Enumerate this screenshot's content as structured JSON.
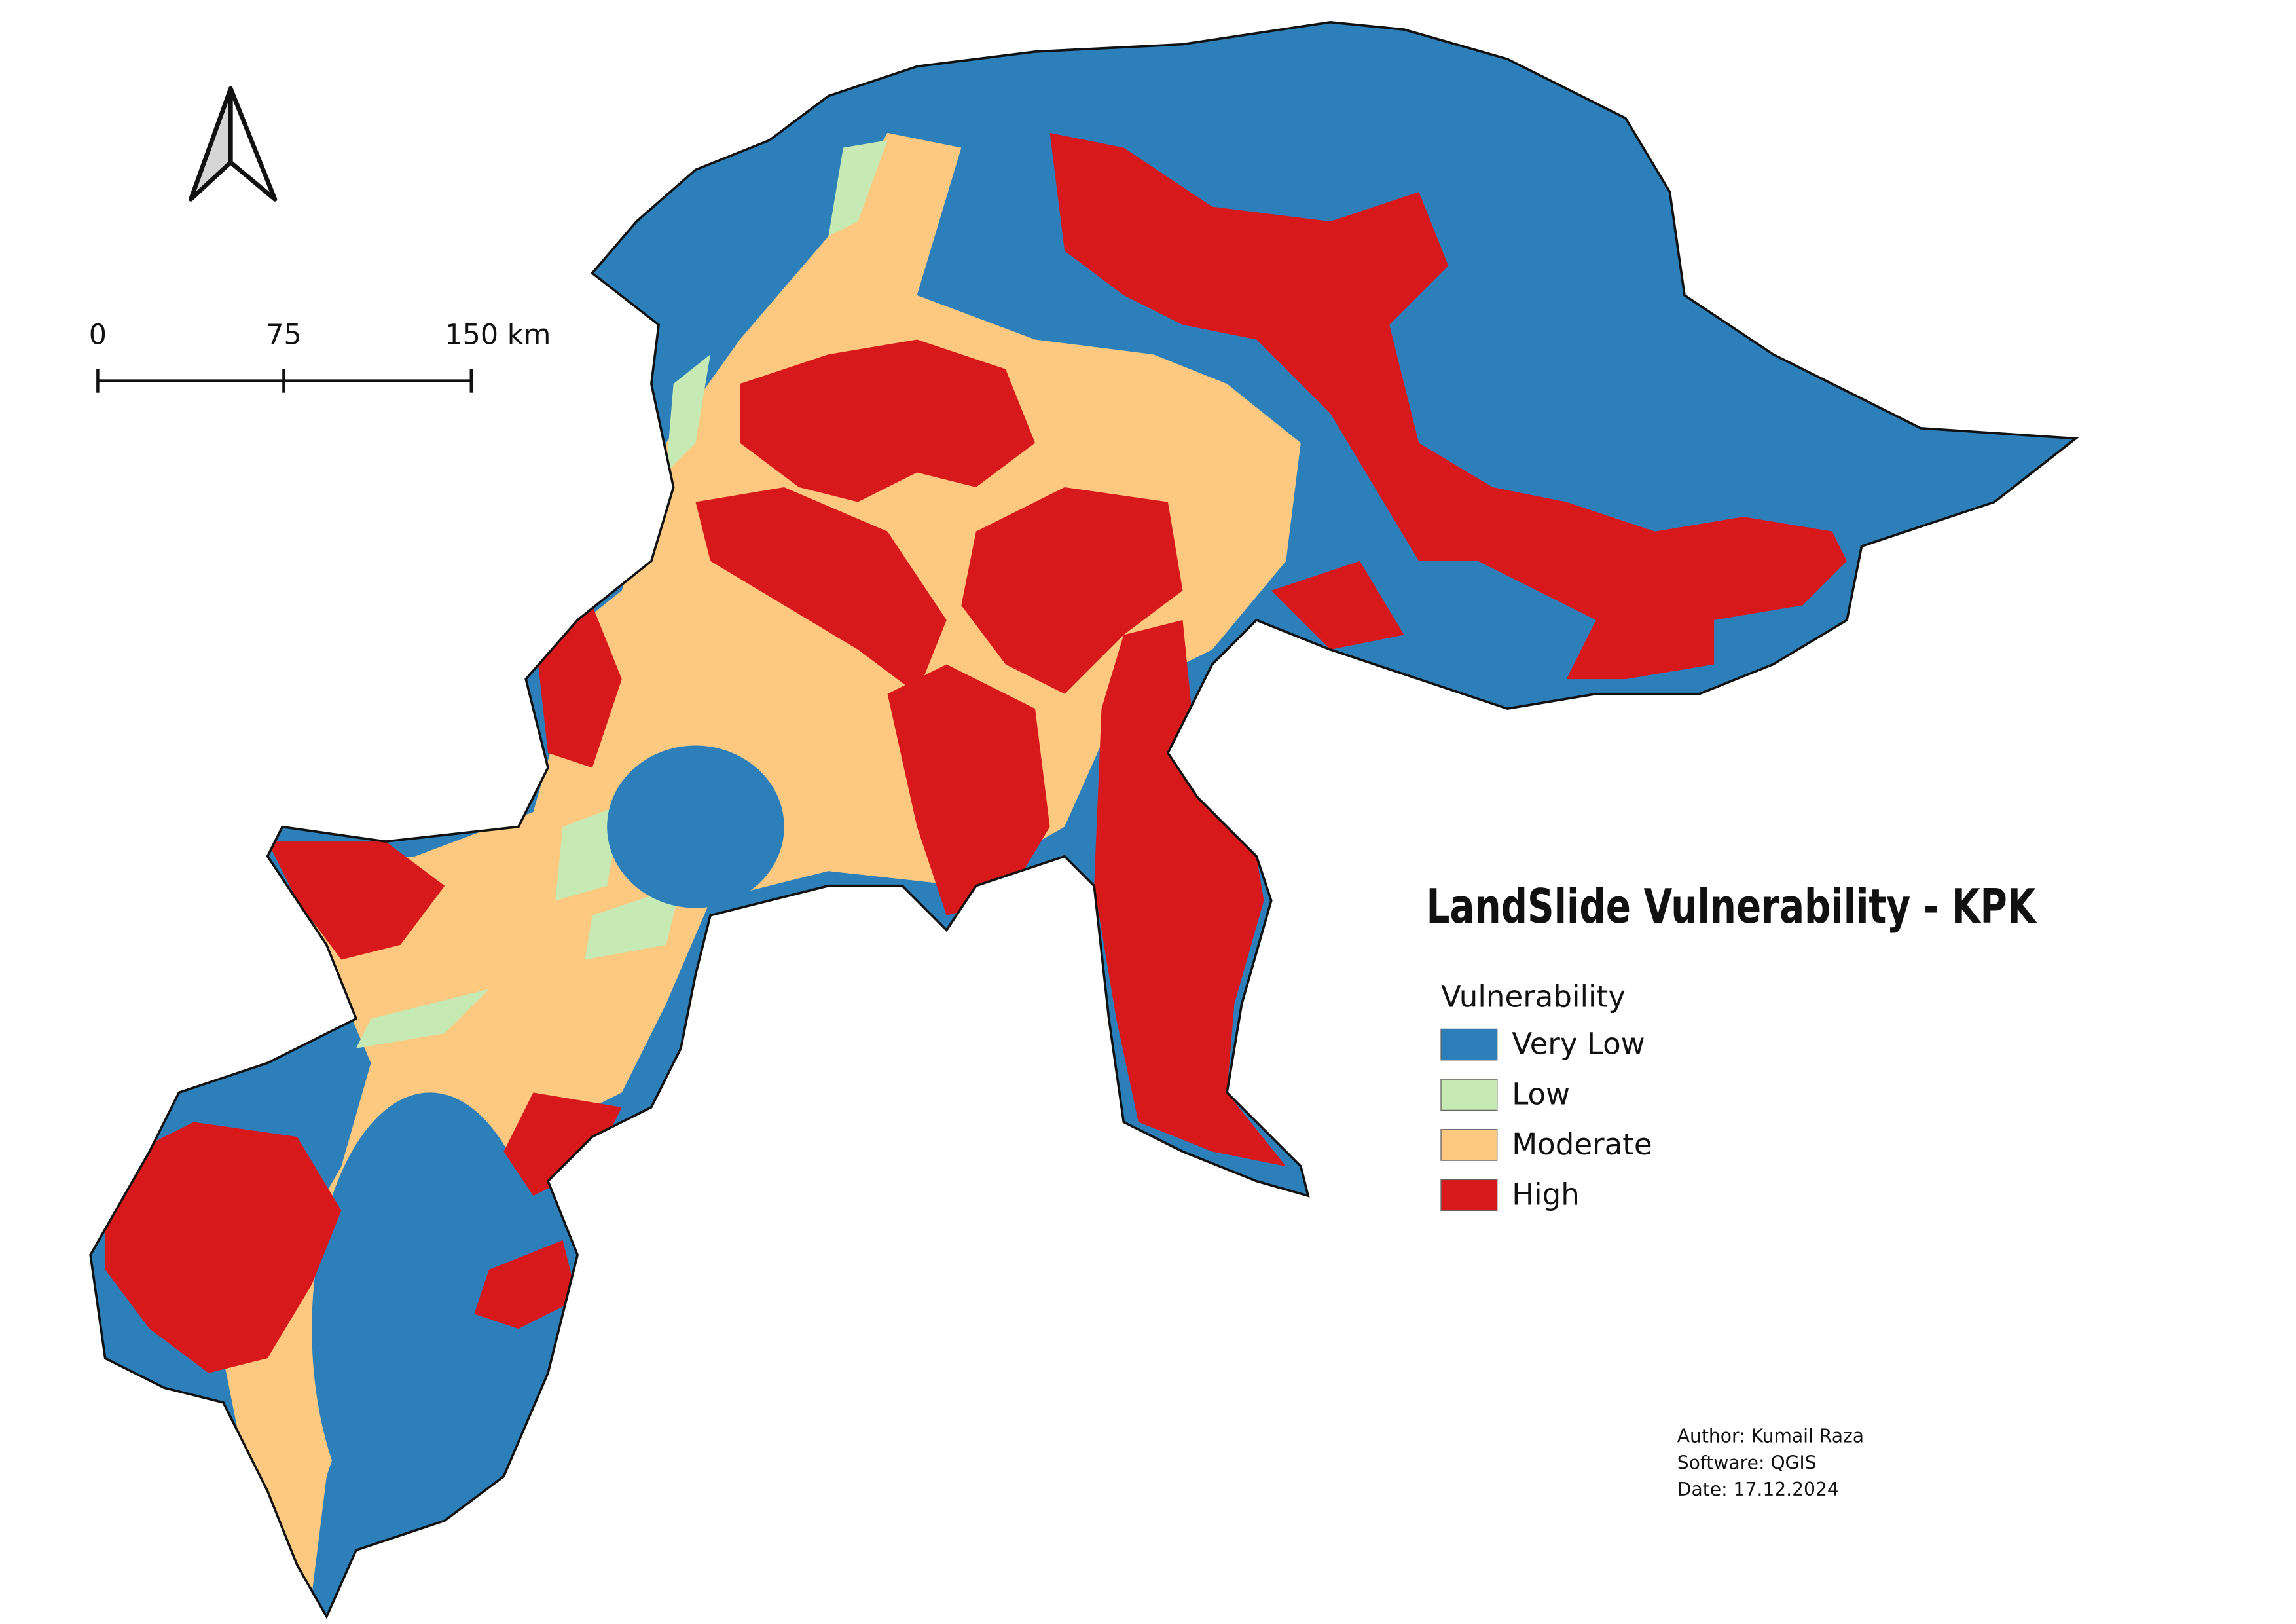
{
  "map": {
    "title": "LandSlide Vulnerability - KPK",
    "legend": {
      "title": "Vulnerability",
      "items": [
        {
          "label": "Very Low",
          "color": "#2c7fb8"
        },
        {
          "label": "Low",
          "color": "#c7e9b4"
        },
        {
          "label": "Moderate",
          "color": "#fdc980"
        },
        {
          "label": "High",
          "color": "#d7191c"
        }
      ]
    },
    "scale_bar": {
      "labels": [
        "0",
        "75",
        "150 km"
      ]
    },
    "credits": [
      "Author: Kumail Raza",
      "Software: QGIS",
      "Date: 17.12.2024"
    ]
  }
}
